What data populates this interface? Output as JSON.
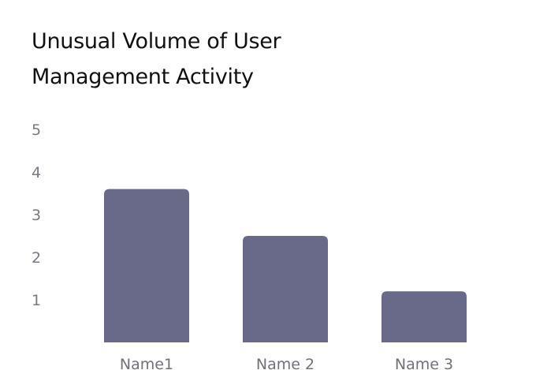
{
  "chart": {
    "title": "Unusual Volume of User Management Activity"
  },
  "chart_data": {
    "type": "bar",
    "title": "Unusual Volume of User Management Activity",
    "categories": [
      "Name1",
      "Name 2",
      "Name 3"
    ],
    "values": [
      3.6,
      2.5,
      1.2
    ],
    "xlabel": "",
    "ylabel": "",
    "ylim": [
      0,
      5
    ],
    "yticks": [
      "1",
      "2",
      "3",
      "4",
      "5"
    ],
    "grid": false,
    "legend": "none",
    "bar_color": "#69698a"
  }
}
